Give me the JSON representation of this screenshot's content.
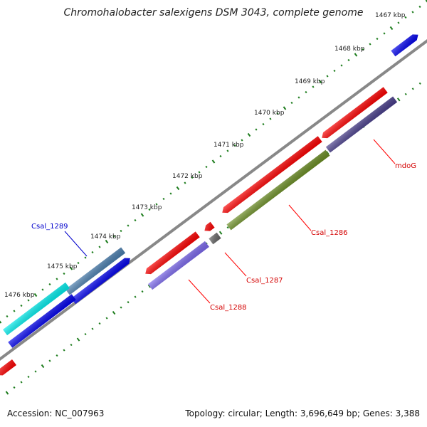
{
  "title": "Chromohalobacter salexigens DSM 3043, complete genome",
  "footer": {
    "accession": "Accession: NC_007963",
    "summary": "Topology: circular; Length: 3,696,649 bp; Genes: 3,388"
  },
  "scale_ticks": [
    "1467 kbp",
    "1468 kbp",
    "1469 kbp",
    "1470 kbp",
    "1471 kbp",
    "1472 kbp",
    "1473 kbp",
    "1474 kbp",
    "1475 kbp",
    "1476 kbp"
  ],
  "gene_labels": [
    {
      "text": "mdoG",
      "color": "#d40000"
    },
    {
      "text": "Csal_1286",
      "color": "#d40000"
    },
    {
      "text": "Csal_1287",
      "color": "#d40000"
    },
    {
      "text": "Csal_1288",
      "color": "#d40000"
    },
    {
      "text": "Csal_1289",
      "color": "#0000cc"
    }
  ],
  "colors": {
    "backbone": "#888888",
    "tick": "#1e7d1e",
    "red": "#ff0000",
    "blue": "#0000ee",
    "cyan": "#00eeee",
    "steelblue": "#4a7fb0",
    "darkslate": "#483d8b",
    "olive": "#6b8e23",
    "slateblue": "#7b68ee",
    "gray": "#666666"
  }
}
